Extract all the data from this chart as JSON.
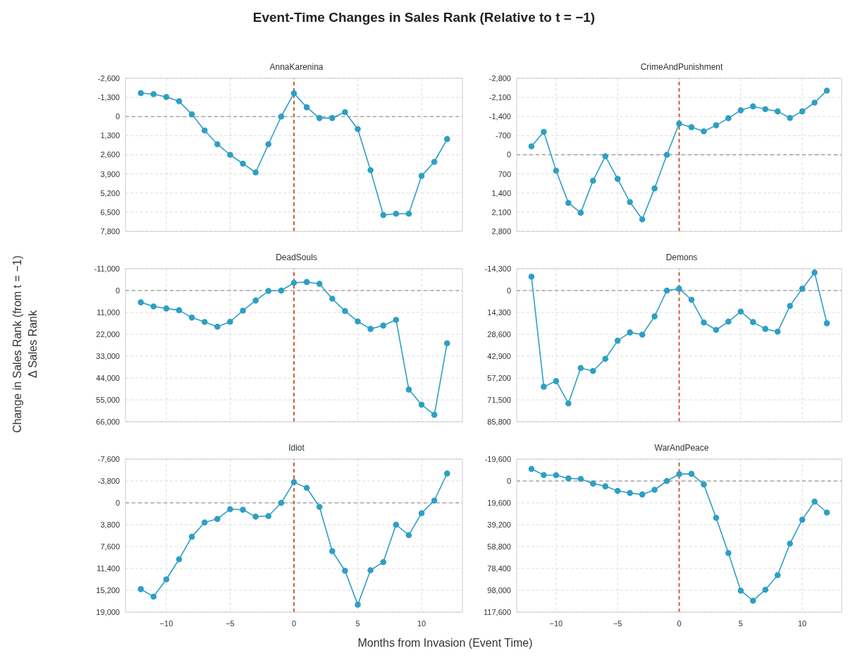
{
  "chart_data": [
    {
      "type": "line",
      "title": "AnnaKarenina",
      "annotations": [
        "Event-Time Changes in Sales Rank (Relative to t = −1)"
      ],
      "ylabel": "Change in Sales Rank (from t = −1)\nΔ Sales Rank",
      "x": [
        -12,
        -11,
        -10,
        -9,
        -8,
        -7,
        -6,
        -5,
        -4,
        -3,
        -2,
        -1,
        0,
        1,
        2,
        3,
        4,
        5,
        6,
        7,
        8,
        9,
        10,
        11,
        12
      ],
      "series": [
        {
          "color": "#2e9fc4",
          "values": [
            -1590,
            -1520,
            -1330,
            -1040,
            -150,
            950,
            1880,
            2600,
            3200,
            3800,
            1880,
            0,
            -1580,
            -630,
            100,
            100,
            -300,
            850,
            3640,
            6690,
            6600,
            6600,
            4030,
            3080,
            1530
          ]
        }
      ],
      "xlim": [
        -13.2,
        13.2
      ],
      "xticks": [
        -10,
        -5,
        0,
        5,
        10
      ],
      "ylim": [
        7800,
        -2600
      ],
      "yticks": [
        {
          "value": -2600,
          "label": "-2,600"
        },
        {
          "value": -1300,
          "label": "-1,300"
        },
        0,
        {
          "value": 1300,
          "label": "1,300"
        },
        {
          "value": 2600,
          "label": "2,600"
        },
        {
          "value": 3900,
          "label": "3,900"
        },
        {
          "value": 5200,
          "label": "5,200"
        },
        {
          "value": 6500,
          "label": "6,500"
        },
        {
          "value": 7800,
          "label": "7,800"
        }
      ],
      "grid": true,
      "marker": "circle",
      "line_style": "solid",
      "tick_labels": "y",
      "ref_lines": [
        {
          "axis": "y",
          "value": 0,
          "color": "#808080",
          "line_style": "dashed"
        },
        {
          "axis": "x",
          "value": 0,
          "color": "#d35b36",
          "line_style": "dashed"
        }
      ]
    },
    {
      "type": "line",
      "title": "CrimeAndPunishment",
      "x": [
        -12,
        -11,
        -10,
        -9,
        -8,
        -7,
        -6,
        -5,
        -4,
        -3,
        -2,
        -1,
        0,
        1,
        2,
        3,
        4,
        5,
        6,
        7,
        8,
        9,
        10,
        11,
        12
      ],
      "series": [
        {
          "color": "#2e9fc4",
          "values": [
            -310,
            -840,
            580,
            1760,
            2120,
            950,
            50,
            880,
            1730,
            2360,
            1230,
            0,
            -1140,
            -1010,
            -860,
            -1080,
            -1340,
            -1630,
            -1770,
            -1670,
            -1590,
            -1350,
            -1590,
            -1910,
            -2350
          ]
        }
      ],
      "xlim": [
        -13.2,
        13.2
      ],
      "xticks": [
        -10,
        -5,
        0,
        5,
        10
      ],
      "ylim": [
        2800,
        -2800
      ],
      "yticks": [
        {
          "value": -2800,
          "label": "-2,800"
        },
        {
          "value": -2100,
          "label": "-2,100"
        },
        {
          "value": -1400,
          "label": "-1,400"
        },
        -700,
        0,
        700,
        {
          "value": 1400,
          "label": "1,400"
        },
        {
          "value": 2100,
          "label": "2,100"
        },
        {
          "value": 2800,
          "label": "2,800"
        }
      ],
      "grid": true,
      "marker": "circle",
      "line_style": "solid",
      "tick_labels": "y",
      "ref_lines": [
        {
          "axis": "y",
          "value": 0,
          "color": "#808080",
          "line_style": "dashed"
        },
        {
          "axis": "x",
          "value": 0,
          "color": "#d35b36",
          "line_style": "dashed"
        }
      ]
    },
    {
      "type": "line",
      "title": "DeadSouls",
      "x": [
        -12,
        -11,
        -10,
        -9,
        -8,
        -7,
        -6,
        -5,
        -4,
        -3,
        -2,
        -1,
        0,
        1,
        2,
        3,
        4,
        5,
        6,
        7,
        8,
        9,
        10,
        11,
        12
      ],
      "series": [
        {
          "color": "#2e9fc4",
          "values": [
            5900,
            8000,
            9000,
            9900,
            13600,
            15800,
            18200,
            15700,
            10100,
            5000,
            200,
            0,
            -3900,
            -4300,
            -3400,
            4100,
            10300,
            15500,
            19300,
            17600,
            14700,
            49800,
            57400,
            62500,
            26500
          ]
        }
      ],
      "xlim": [
        -13.2,
        13.2
      ],
      "xticks": [
        -10,
        -5,
        0,
        5,
        10
      ],
      "ylim": [
        66000,
        -11000
      ],
      "yticks": [
        {
          "value": -11000,
          "label": "-11,000"
        },
        0,
        {
          "value": 11000,
          "label": "11,000"
        },
        {
          "value": 22000,
          "label": "22,000"
        },
        {
          "value": 33000,
          "label": "33,000"
        },
        {
          "value": 44000,
          "label": "44,000"
        },
        {
          "value": 55000,
          "label": "55,000"
        },
        {
          "value": 66000,
          "label": "66,000"
        }
      ],
      "grid": true,
      "marker": "circle",
      "line_style": "solid",
      "tick_labels": "y",
      "ref_lines": [
        {
          "axis": "y",
          "value": 0,
          "color": "#808080",
          "line_style": "dashed"
        },
        {
          "axis": "x",
          "value": 0,
          "color": "#d35b36",
          "line_style": "dashed"
        }
      ]
    },
    {
      "type": "line",
      "title": "Demons",
      "x": [
        -12,
        -11,
        -10,
        -9,
        -8,
        -7,
        -6,
        -5,
        -4,
        -3,
        -2,
        -1,
        0,
        1,
        2,
        3,
        4,
        5,
        6,
        7,
        8,
        9,
        10,
        11,
        12
      ],
      "series": [
        {
          "color": "#2e9fc4",
          "values": [
            -9100,
            62900,
            59200,
            73800,
            50700,
            52600,
            44600,
            32800,
            27400,
            28800,
            16900,
            0,
            -1200,
            6000,
            20900,
            25700,
            20300,
            13700,
            20600,
            25100,
            26900,
            10000,
            -1200,
            -11800,
            21400
          ]
        }
      ],
      "xlim": [
        -13.2,
        13.2
      ],
      "xticks": [
        -10,
        -5,
        0,
        5,
        10
      ],
      "ylim": [
        85800,
        -14300
      ],
      "yticks": [
        {
          "value": -14300,
          "label": "-14,300"
        },
        0,
        {
          "value": 14300,
          "label": "14,300"
        },
        {
          "value": 28600,
          "label": "28,600"
        },
        {
          "value": 42900,
          "label": "42,900"
        },
        {
          "value": 57200,
          "label": "57,200"
        },
        {
          "value": 71500,
          "label": "71,500"
        },
        {
          "value": 85800,
          "label": "85,800"
        }
      ],
      "grid": true,
      "marker": "circle",
      "line_style": "solid",
      "tick_labels": "y",
      "ref_lines": [
        {
          "axis": "y",
          "value": 0,
          "color": "#808080",
          "line_style": "dashed"
        },
        {
          "axis": "x",
          "value": 0,
          "color": "#d35b36",
          "line_style": "dashed"
        }
      ]
    },
    {
      "type": "line",
      "title": "Idiot",
      "xlabel": "Months from Invasion (Event Time)",
      "x": [
        -12,
        -11,
        -10,
        -9,
        -8,
        -7,
        -6,
        -5,
        -4,
        -3,
        -2,
        -1,
        0,
        1,
        2,
        3,
        4,
        5,
        6,
        7,
        8,
        9,
        10,
        11,
        12
      ],
      "series": [
        {
          "color": "#2e9fc4",
          "values": [
            15000,
            16300,
            13300,
            9800,
            5900,
            3400,
            2800,
            1100,
            1200,
            2400,
            2300,
            0,
            -3600,
            -2600,
            700,
            8400,
            11800,
            17700,
            11700,
            10300,
            3800,
            5600,
            1800,
            -400,
            -5100
          ]
        }
      ],
      "xlim": [
        -13.2,
        13.2
      ],
      "xticks": [
        -10,
        -5,
        0,
        5,
        10
      ],
      "ylim": [
        19000,
        -7600
      ],
      "yticks": [
        {
          "value": -7600,
          "label": "-7,600"
        },
        {
          "value": -3800,
          "label": "-3,800"
        },
        0,
        {
          "value": 3800,
          "label": "3,800"
        },
        {
          "value": 7600,
          "label": "7,600"
        },
        {
          "value": 11400,
          "label": "11,400"
        },
        {
          "value": 15200,
          "label": "15,200"
        },
        {
          "value": 19000,
          "label": "19,000"
        }
      ],
      "grid": true,
      "marker": "circle",
      "line_style": "solid",
      "ref_lines": [
        {
          "axis": "y",
          "value": 0,
          "color": "#808080",
          "line_style": "dashed"
        },
        {
          "axis": "x",
          "value": 0,
          "color": "#d35b36",
          "line_style": "dashed"
        }
      ]
    },
    {
      "type": "line",
      "title": "WarAndPeace",
      "x": [
        -12,
        -11,
        -10,
        -9,
        -8,
        -7,
        -6,
        -5,
        -4,
        -3,
        -2,
        -1,
        0,
        1,
        2,
        3,
        4,
        5,
        6,
        7,
        8,
        9,
        10,
        11,
        12
      ],
      "series": [
        {
          "color": "#2e9fc4",
          "values": [
            -10800,
            -5400,
            -5200,
            -2300,
            -1900,
            2300,
            4800,
            8900,
            10800,
            12100,
            7900,
            0,
            -6200,
            -6400,
            3100,
            33000,
            64600,
            98300,
            107300,
            97500,
            84400,
            56100,
            34700,
            18500,
            28300
          ]
        }
      ],
      "xlim": [
        -13.2,
        13.2
      ],
      "xticks": [
        -10,
        -5,
        0,
        5,
        10
      ],
      "ylim": [
        117600,
        -19600
      ],
      "yticks": [
        {
          "value": -19600,
          "label": "-19,600"
        },
        0,
        {
          "value": 19600,
          "label": "19,600"
        },
        {
          "value": 39200,
          "label": "39,200"
        },
        {
          "value": 58800,
          "label": "58,800"
        },
        {
          "value": 78400,
          "label": "78,400"
        },
        {
          "value": 98000,
          "label": "98,000"
        },
        {
          "value": 117600,
          "label": "117,600"
        }
      ],
      "grid": true,
      "marker": "circle",
      "line_style": "solid",
      "ref_lines": [
        {
          "axis": "y",
          "value": 0,
          "color": "#808080",
          "line_style": "dashed"
        },
        {
          "axis": "x",
          "value": 0,
          "color": "#d35b36",
          "line_style": "dashed"
        }
      ]
    }
  ]
}
